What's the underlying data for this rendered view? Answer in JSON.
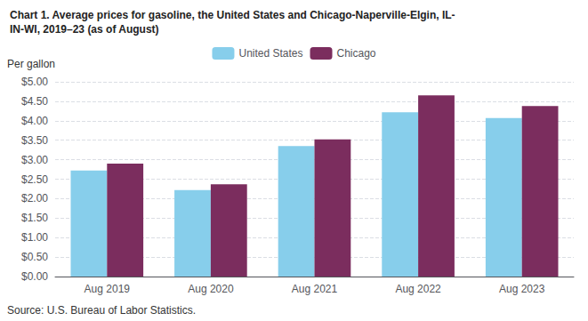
{
  "chart_data": {
    "type": "bar",
    "title": "Chart 1. Average prices for gasoline, the United States and Chicago-Naperville-Elgin, IL-\nIN-WI, 2019–23 (as of August)",
    "ylabel": "Per gallon",
    "annotations": [
      "Source: U.S. Bureau of Labor Statistics."
    ],
    "categories": [
      "Aug 2019",
      "Aug 2020",
      "Aug 2021",
      "Aug 2022",
      "Aug 2023"
    ],
    "series": [
      {
        "name": "United States",
        "color": "#87CEEB",
        "values": [
          2.72,
          2.22,
          3.35,
          4.22,
          4.07
        ]
      },
      {
        "name": "Chicago",
        "color": "#7B2D5E",
        "values": [
          2.9,
          2.37,
          3.52,
          4.65,
          4.38
        ]
      }
    ],
    "ylim": [
      0,
      5.0
    ],
    "yticks": [
      {
        "value": 0.0,
        "label": "$0.00"
      },
      {
        "value": 0.5,
        "label": "$0.50"
      },
      {
        "value": 1.0,
        "label": "$1.00"
      },
      {
        "value": 1.5,
        "label": "$1.50"
      },
      {
        "value": 2.0,
        "label": "$2.00"
      },
      {
        "value": 2.5,
        "label": "$2.50"
      },
      {
        "value": 3.0,
        "label": "$3.00"
      },
      {
        "value": 3.5,
        "label": "$3.50"
      },
      {
        "value": 4.0,
        "label": "$4.00"
      },
      {
        "value": 4.5,
        "label": "$4.50"
      },
      {
        "value": 5.0,
        "label": "$5.00"
      }
    ],
    "grid": true,
    "legend": "top"
  }
}
